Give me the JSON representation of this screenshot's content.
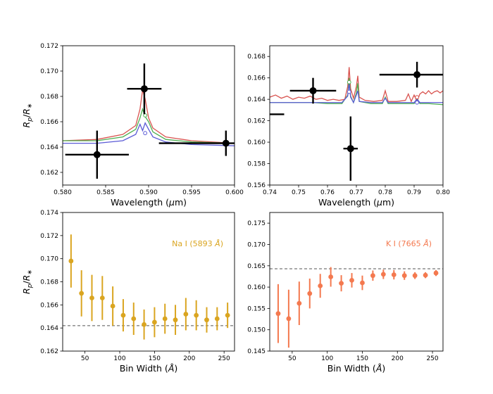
{
  "chart_data": [
    {
      "id": "panel_a",
      "type": "line",
      "title": "",
      "xlabel": "Wavelength (μm)",
      "ylabel": "Rp/R*",
      "xlim": [
        0.58,
        0.6
      ],
      "ylim": [
        0.161,
        0.172
      ],
      "xticks": [
        0.58,
        0.585,
        0.59,
        0.595,
        0.6
      ],
      "xtick_labels": [
        "0.580",
        "0.585",
        "0.590",
        "0.595",
        "0.600"
      ],
      "yticks": [
        0.162,
        0.164,
        0.166,
        0.168,
        0.17,
        0.172
      ],
      "ytick_labels": [
        "0.162",
        "0.164",
        "0.166",
        "0.168",
        "0.170",
        "0.172"
      ],
      "series": [
        {
          "name": "model-red",
          "color": "#d9534f",
          "x": [
            0.58,
            0.584,
            0.587,
            0.5885,
            0.589,
            0.5893,
            0.5896,
            0.59,
            0.5905,
            0.592,
            0.595,
            0.6
          ],
          "y": [
            0.1645,
            0.1646,
            0.165,
            0.1657,
            0.167,
            0.1685,
            0.1678,
            0.1663,
            0.1655,
            0.1648,
            0.1645,
            0.1643
          ]
        },
        {
          "name": "model-green",
          "color": "#4caf50",
          "x": [
            0.58,
            0.584,
            0.587,
            0.5885,
            0.589,
            0.5893,
            0.5896,
            0.59,
            0.5905,
            0.592,
            0.595,
            0.6
          ],
          "y": [
            0.1645,
            0.1645,
            0.1648,
            0.1654,
            0.1663,
            0.167,
            0.1664,
            0.166,
            0.1652,
            0.1646,
            0.1644,
            0.1643
          ]
        },
        {
          "name": "model-blue",
          "color": "#5b5bd6",
          "x": [
            0.58,
            0.584,
            0.587,
            0.5885,
            0.589,
            0.5893,
            0.5896,
            0.59,
            0.5905,
            0.592,
            0.595,
            0.6
          ],
          "y": [
            0.1643,
            0.1643,
            0.1645,
            0.165,
            0.1658,
            0.1653,
            0.1659,
            0.1654,
            0.1648,
            0.1644,
            0.1642,
            0.1641
          ]
        }
      ],
      "markers": [
        {
          "x": 0.5896,
          "y": 0.1665,
          "color": "#4caf50"
        },
        {
          "x": 0.5896,
          "y": 0.1651,
          "color": "#5b5bd6"
        }
      ],
      "points": [
        {
          "x": 0.584,
          "y": 0.1634,
          "xerr": 0.0037,
          "yerr": 0.0019
        },
        {
          "x": 0.5895,
          "y": 0.1686,
          "xerr": 0.002,
          "yerr": 0.002
        },
        {
          "x": 0.599,
          "y": 0.1643,
          "xerr": 0.0078,
          "yerr": 0.001
        }
      ]
    },
    {
      "id": "panel_b",
      "type": "line",
      "title": "",
      "xlabel": "Wavelength (μm)",
      "ylabel": "",
      "xlim": [
        0.74,
        0.8
      ],
      "ylim": [
        0.156,
        0.169
      ],
      "xticks": [
        0.74,
        0.75,
        0.76,
        0.77,
        0.78,
        0.79,
        0.8
      ],
      "xtick_labels": [
        "0.74",
        "0.75",
        "0.76",
        "0.77",
        "0.78",
        "0.79",
        "0.80"
      ],
      "yticks": [
        0.156,
        0.158,
        0.16,
        0.162,
        0.164,
        0.166,
        0.168
      ],
      "ytick_labels": [
        "0.156",
        "0.158",
        "0.160",
        "0.162",
        "0.164",
        "0.166",
        "0.168"
      ],
      "series": [
        {
          "name": "model-red",
          "color": "#d9534f",
          "x": [
            0.74,
            0.742,
            0.744,
            0.746,
            0.748,
            0.75,
            0.752,
            0.754,
            0.756,
            0.758,
            0.76,
            0.762,
            0.764,
            0.766,
            0.767,
            0.7675,
            0.768,
            0.769,
            0.77,
            0.7705,
            0.771,
            0.773,
            0.776,
            0.779,
            0.78,
            0.781,
            0.784,
            0.787,
            0.788,
            0.789,
            0.79,
            0.791,
            0.792,
            0.793,
            0.794,
            0.795,
            0.796,
            0.797,
            0.798,
            0.799,
            0.8
          ],
          "y": [
            0.1642,
            0.1644,
            0.1641,
            0.1643,
            0.164,
            0.1642,
            0.1641,
            0.1643,
            0.164,
            0.1641,
            0.1639,
            0.164,
            0.1639,
            0.164,
            0.1652,
            0.167,
            0.165,
            0.1641,
            0.1652,
            0.1662,
            0.1642,
            0.1639,
            0.1638,
            0.1639,
            0.1648,
            0.1638,
            0.1638,
            0.1639,
            0.1645,
            0.1638,
            0.1644,
            0.1638,
            0.1645,
            0.1647,
            0.1645,
            0.1648,
            0.1645,
            0.1647,
            0.1648,
            0.1646,
            0.1648
          ]
        },
        {
          "name": "model-green",
          "color": "#4caf50",
          "x": [
            0.74,
            0.745,
            0.75,
            0.755,
            0.76,
            0.765,
            0.767,
            0.7675,
            0.768,
            0.769,
            0.77,
            0.7705,
            0.771,
            0.775,
            0.779,
            0.78,
            0.781,
            0.785,
            0.79,
            0.791,
            0.792,
            0.795,
            0.8
          ],
          "y": [
            0.1637,
            0.1637,
            0.1637,
            0.1637,
            0.1636,
            0.1636,
            0.1644,
            0.166,
            0.1643,
            0.1637,
            0.1646,
            0.1655,
            0.1638,
            0.1636,
            0.1636,
            0.1642,
            0.1636,
            0.1636,
            0.1636,
            0.1641,
            0.1636,
            0.1636,
            0.1635
          ]
        },
        {
          "name": "model-blue",
          "color": "#5b5bd6",
          "x": [
            0.74,
            0.745,
            0.75,
            0.755,
            0.76,
            0.765,
            0.767,
            0.7675,
            0.768,
            0.769,
            0.77,
            0.7705,
            0.771,
            0.775,
            0.779,
            0.78,
            0.781,
            0.785,
            0.79,
            0.791,
            0.792,
            0.795,
            0.8
          ],
          "y": [
            0.1637,
            0.1637,
            0.1637,
            0.1637,
            0.1637,
            0.1637,
            0.1643,
            0.1655,
            0.1642,
            0.1637,
            0.1644,
            0.1648,
            0.1638,
            0.1637,
            0.1637,
            0.1641,
            0.1637,
            0.1637,
            0.1637,
            0.164,
            0.1637,
            0.1637,
            0.1637
          ]
        }
      ],
      "markers": [
        {
          "x": 0.7675,
          "y": 0.1656,
          "color": "#4caf50"
        },
        {
          "x": 0.7675,
          "y": 0.1647,
          "color": "#5b5bd6"
        },
        {
          "x": 0.791,
          "y": 0.1642,
          "color": "#d9534f"
        },
        {
          "x": 0.791,
          "y": 0.1637,
          "color": "#5b5bd6"
        }
      ],
      "points": [
        {
          "x": 0.755,
          "y": 0.1648,
          "xerr": 0.008,
          "yerr": 0.0012
        },
        {
          "x": 0.768,
          "y": 0.1594,
          "xerr": 0.0025,
          "yerr": 0.003
        },
        {
          "x": 0.791,
          "y": 0.1663,
          "xerr": 0.013,
          "yerr": 0.0012
        },
        {
          "x": 0.742,
          "y": 0.1626,
          "xerr": 0.003,
          "yerr": 0.0
        }
      ]
    },
    {
      "id": "panel_c",
      "type": "scatter",
      "title": "",
      "xlabel": "Bin Width (Å)",
      "ylabel": "Rp/R*",
      "xlim": [
        18,
        265
      ],
      "ylim": [
        0.162,
        0.174
      ],
      "xticks": [
        50,
        100,
        150,
        200,
        250
      ],
      "xtick_labels": [
        "50",
        "100",
        "150",
        "200",
        "250"
      ],
      "yticks": [
        0.162,
        0.164,
        0.166,
        0.168,
        0.17,
        0.172,
        0.174
      ],
      "ytick_labels": [
        "0.162",
        "0.164",
        "0.166",
        "0.168",
        "0.170",
        "0.172",
        "0.174"
      ],
      "annotation": "Na I (5893 Å)",
      "color": "#daa520",
      "reference_line": 0.1642,
      "x": [
        30,
        45,
        60,
        75,
        90,
        105,
        120,
        135,
        150,
        165,
        180,
        195,
        210,
        225,
        240,
        255
      ],
      "y": [
        0.1698,
        0.167,
        0.1666,
        0.1666,
        0.1659,
        0.1651,
        0.1648,
        0.1643,
        0.1645,
        0.1648,
        0.1647,
        0.1652,
        0.1651,
        0.1647,
        0.1648,
        0.1651
      ],
      "yerr": [
        0.0023,
        0.002,
        0.002,
        0.0019,
        0.0017,
        0.0014,
        0.0014,
        0.0013,
        0.0013,
        0.0013,
        0.0013,
        0.0014,
        0.0013,
        0.0011,
        0.001,
        0.0011
      ]
    },
    {
      "id": "panel_d",
      "type": "scatter",
      "title": "",
      "xlabel": "Bin Width (Å)",
      "ylabel": "",
      "xlim": [
        18,
        265
      ],
      "ylim": [
        0.145,
        0.1775
      ],
      "xticks": [
        50,
        100,
        150,
        200,
        250
      ],
      "xtick_labels": [
        "50",
        "100",
        "150",
        "200",
        "250"
      ],
      "yticks": [
        0.145,
        0.15,
        0.155,
        0.16,
        0.165,
        0.17,
        0.175
      ],
      "ytick_labels": [
        "0.145",
        "0.150",
        "0.155",
        "0.160",
        "0.165",
        "0.170",
        "0.175"
      ],
      "annotation": "K I (7665 Å)",
      "color": "#f4794f",
      "reference_line": 0.1643,
      "x": [
        30,
        45,
        60,
        75,
        90,
        105,
        120,
        135,
        150,
        165,
        180,
        195,
        210,
        225,
        240,
        255
      ],
      "y": [
        0.1538,
        0.1526,
        0.1562,
        0.1585,
        0.1603,
        0.1624,
        0.1609,
        0.1616,
        0.161,
        0.1627,
        0.163,
        0.1629,
        0.1627,
        0.1627,
        0.1628,
        0.1633
      ],
      "yerr": [
        0.0069,
        0.0068,
        0.0051,
        0.0035,
        0.0028,
        0.0023,
        0.0019,
        0.0017,
        0.0017,
        0.0012,
        0.0011,
        0.0011,
        0.001,
        0.0008,
        0.0007,
        0.0007
      ]
    }
  ]
}
